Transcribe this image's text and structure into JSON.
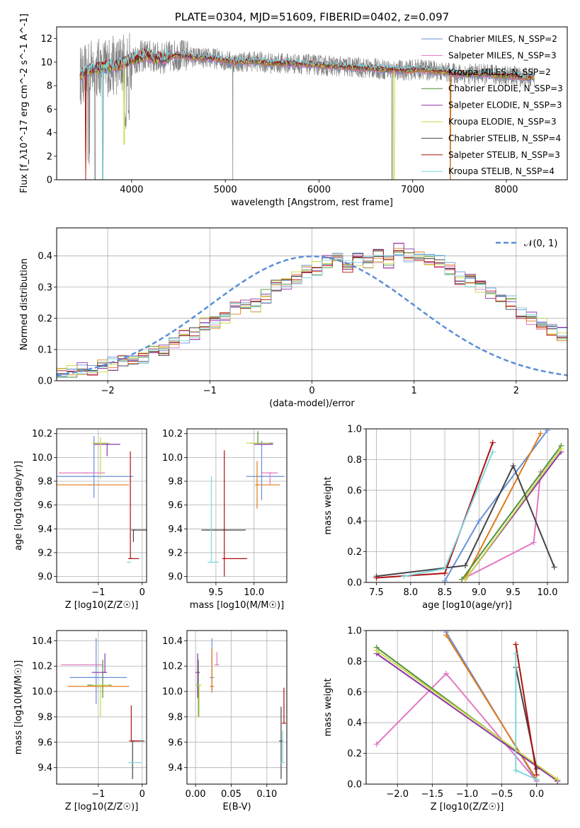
{
  "colors": {
    "c1": "#6a8fd8",
    "c2": "#e377c2",
    "c3": "#e07b1a",
    "c4": "#4f8f3a",
    "c5": "#8e35a8",
    "c6": "#c9d94a",
    "c7": "#444444",
    "c8": "#b01010",
    "c9": "#7fd6dd",
    "grey": "#808080",
    "normal": "#5b8fd6",
    "grid": "#b0b0b0"
  },
  "series_names": [
    "Chabrier MILES, N_SSP=2",
    "Salpeter MILES, N_SSP=3",
    "Kroupa MILES, N_SSP=2",
    "Chabrier ELODIE, N_SSP=3",
    "Salpeter ELODIE, N_SSP=3",
    "Kroupa ELODIE, N_SSP=3",
    "Chabrier STELIB, N_SSP=4",
    "Salpeter STELIB, N_SSP=3",
    "Kroupa STELIB, N_SSP=4"
  ],
  "chart_data": [
    {
      "id": "spectrum",
      "type": "line",
      "title": "PLATE=0304, MJD=51609, FIBERID=0402, z=0.097",
      "xlabel": "wavelength [Angstrom, rest frame]",
      "ylabel": "Flux [f_λ10^-17 erg cm^-2 s^-1 A^-1]",
      "xlim": [
        3200,
        8650
      ],
      "ylim": [
        0,
        13
      ],
      "xticks": [
        4000,
        5000,
        6000,
        7000,
        8000
      ],
      "yticks": [
        0,
        2,
        4,
        6,
        8,
        10,
        12
      ],
      "grid": false,
      "legend": "top-right",
      "legend_entries": [
        "Chabrier MILES, N_SSP=2",
        "Salpeter MILES, N_SSP=3",
        "Kroupa MILES, N_SSP=2",
        "Chabrier ELODIE, N_SSP=3",
        "Salpeter ELODIE, N_SSP=3",
        "Kroupa ELODIE, N_SSP=3",
        "Chabrier STELIB, N_SSP=4",
        "Salpeter STELIB, N_SSP=3",
        "Kroupa STELIB, N_SSP=4"
      ],
      "model_continuum": {
        "x": [
          3450,
          3550,
          3700,
          3850,
          4000,
          4150,
          4300,
          4500,
          4700,
          4900,
          5100,
          5300,
          5500,
          5700,
          5900,
          6100,
          6300,
          6500,
          6700,
          6900,
          7100,
          7300,
          7500,
          7700,
          7900,
          8100,
          8250
        ],
        "y": [
          8.9,
          9.3,
          9.6,
          9.7,
          10.2,
          10.6,
          10.3,
          10.6,
          10.4,
          10.3,
          10.0,
          10.1,
          9.9,
          9.9,
          9.8,
          9.7,
          9.6,
          9.5,
          9.4,
          9.3,
          9.4,
          9.2,
          9.0,
          9.0,
          8.9,
          8.8,
          8.7
        ]
      }
    },
    {
      "id": "residuals",
      "type": "line",
      "xlabel": "(data-model)/error",
      "ylabel": "Normed distribution",
      "xlim": [
        -2.5,
        2.5
      ],
      "ylim": [
        0,
        0.49
      ],
      "xticks": [
        -2,
        -1,
        0,
        1,
        2
      ],
      "yticks": [
        0.0,
        0.1,
        0.2,
        0.3,
        0.4
      ],
      "grid": true,
      "legend": "top-right",
      "legend_entries": [
        "N(0,1)"
      ],
      "normal_label": "𝒩(0, 1)",
      "bin_edges_start": -2.5,
      "bin_width": 0.1,
      "base_hist": [
        0.025,
        0.03,
        0.04,
        0.04,
        0.05,
        0.055,
        0.06,
        0.065,
        0.075,
        0.09,
        0.1,
        0.12,
        0.14,
        0.15,
        0.18,
        0.19,
        0.2,
        0.23,
        0.25,
        0.24,
        0.27,
        0.3,
        0.31,
        0.33,
        0.35,
        0.36,
        0.38,
        0.39,
        0.37,
        0.39,
        0.38,
        0.4,
        0.38,
        0.42,
        0.4,
        0.4,
        0.39,
        0.38,
        0.36,
        0.33,
        0.32,
        0.3,
        0.28,
        0.26,
        0.25,
        0.22,
        0.2,
        0.18,
        0.16,
        0.15,
        0.13,
        0.12,
        0.1,
        0.09,
        0.08,
        0.07,
        0.06,
        0.055,
        0.05,
        0.045,
        0.04,
        0.04,
        0.035,
        0.03,
        0.03,
        0.025,
        0.025,
        0.02,
        0.02,
        0.02
      ],
      "normal_curve": {
        "x": [
          -2.5,
          -2.0,
          -1.5,
          -1.0,
          -0.5,
          0.0,
          0.5,
          1.0,
          1.5,
          2.0,
          2.5
        ],
        "y": [
          0.0175,
          0.054,
          0.1295,
          0.242,
          0.352,
          0.399,
          0.352,
          0.242,
          0.1295,
          0.054,
          0.0175
        ]
      }
    },
    {
      "id": "z-age",
      "type": "scatter",
      "xlabel": "Z [log10(Z/Z☉)]",
      "ylabel": "age  [log10(age/yr)]",
      "xlim": [
        -1.95,
        0.1
      ],
      "ylim": [
        8.95,
        10.24
      ],
      "xticks": [
        -1,
        0
      ],
      "yticks": [
        9.0,
        9.2,
        9.4,
        9.6,
        9.8,
        10.0,
        10.2
      ],
      "grid": true,
      "points": [
        {
          "s": 1,
          "x": -1.1,
          "y": 9.84,
          "xerr": [
            0.9,
            0.9
          ],
          "yerr": [
            0.18,
            0.34
          ]
        },
        {
          "s": 2,
          "x": -1.3,
          "y": 9.87,
          "xerr": [
            0.6,
            0.45
          ],
          "yerr": [
            0.0,
            0.0
          ]
        },
        {
          "s": 3,
          "x": -1.2,
          "y": 9.77,
          "xerr": [
            0.8,
            0.9
          ],
          "yerr": [
            0.0,
            0.0
          ]
        },
        {
          "s": 4,
          "x": -0.9,
          "y": 10.12,
          "xerr": [
            0.2,
            0.15
          ],
          "yerr": [
            0.0,
            0.0
          ]
        },
        {
          "s": 5,
          "x": -0.8,
          "y": 10.11,
          "xerr": [
            0.3,
            0.3
          ],
          "yerr": [
            0.1,
            0.0
          ]
        },
        {
          "s": 6,
          "x": -0.95,
          "y": 10.12,
          "xerr": [
            0.2,
            0.2
          ],
          "yerr": [
            0.3,
            0.05
          ]
        },
        {
          "s": 7,
          "x": -0.2,
          "y": 9.39,
          "xerr": [
            0.0,
            0.3
          ],
          "yerr": [
            0.1,
            0.0
          ]
        },
        {
          "s": 8,
          "x": -0.27,
          "y": 9.15,
          "xerr": [
            0.0,
            0.2
          ],
          "yerr": [
            0.0,
            0.9
          ]
        },
        {
          "s": 9,
          "x": -0.3,
          "y": 9.12,
          "xerr": [
            0.0,
            0.0
          ],
          "yerr": [
            0.0,
            0.0
          ]
        }
      ]
    },
    {
      "id": "mass-age",
      "type": "scatter",
      "xlabel": "mass [log10(M/M☉)]",
      "ylabel": "",
      "xlim": [
        9.12,
        10.43
      ],
      "ylim": [
        8.95,
        10.24
      ],
      "xticks": [
        9.5,
        10.0
      ],
      "yticks": [
        9.0,
        9.2,
        9.4,
        9.6,
        9.8,
        10.0,
        10.2
      ],
      "grid": true,
      "points": [
        {
          "s": 1,
          "x": 10.1,
          "y": 9.84,
          "xerr": [
            0.2,
            0.3
          ],
          "yerr": [
            0.2,
            0.3
          ]
        },
        {
          "s": 2,
          "x": 10.21,
          "y": 9.87,
          "xerr": [
            0.12,
            0.1
          ],
          "yerr": [
            0.1,
            0.0
          ]
        },
        {
          "s": 3,
          "x": 10.04,
          "y": 9.77,
          "xerr": [
            0.0,
            0.3
          ],
          "yerr": [
            0.2,
            0.2
          ]
        },
        {
          "s": 4,
          "x": 10.05,
          "y": 10.12,
          "xerr": [
            0.1,
            0.2
          ],
          "yerr": [
            0.0,
            0.1
          ]
        },
        {
          "s": 5,
          "x": 10.15,
          "y": 10.11,
          "xerr": [
            0.15,
            0.1
          ],
          "yerr": [
            0.0,
            0.0
          ]
        },
        {
          "s": 6,
          "x": 10.0,
          "y": 10.12,
          "xerr": [
            0.1,
            0.2
          ],
          "yerr": [
            0.0,
            0.0
          ]
        },
        {
          "s": 7,
          "x": 9.61,
          "y": 9.39,
          "xerr": [
            0.3,
            0.28
          ],
          "yerr": [
            0.0,
            0.0
          ]
        },
        {
          "s": 8,
          "x": 9.61,
          "y": 9.15,
          "xerr": [
            0.0,
            0.3
          ],
          "yerr": [
            0.15,
            0.91
          ]
        },
        {
          "s": 9,
          "x": 9.44,
          "y": 9.12,
          "xerr": [
            0.05,
            0.1
          ],
          "yerr": [
            0.0,
            0.72
          ]
        }
      ]
    },
    {
      "id": "age-weight",
      "type": "line",
      "xlabel": "age  [log10(age/yr)]",
      "ylabel": "mass weight",
      "xlim": [
        7.35,
        10.3
      ],
      "ylim": [
        0,
        1
      ],
      "xticks": [
        7.5,
        8.0,
        8.5,
        9.0,
        9.5,
        10.0
      ],
      "yticks": [
        0.0,
        0.2,
        0.4,
        0.6,
        0.8,
        1.0
      ],
      "grid": true,
      "series": [
        {
          "s": 1,
          "x": [
            8.5,
            9.0,
            10.0
          ],
          "y": [
            0.01,
            0.4,
            0.99
          ]
        },
        {
          "s": 2,
          "x": [
            8.75,
            9.8,
            9.9
          ],
          "y": [
            0.02,
            0.26,
            0.72
          ]
        },
        {
          "s": 3,
          "x": [
            8.8,
            9.9
          ],
          "y": [
            0.03,
            0.97
          ]
        },
        {
          "s": 4,
          "x": [
            8.75,
            10.2
          ],
          "y": [
            0.02,
            0.89
          ]
        },
        {
          "s": 5,
          "x": [
            8.8,
            10.2
          ],
          "y": [
            0.02,
            0.85
          ]
        },
        {
          "s": 6,
          "x": [
            8.8,
            10.2
          ],
          "y": [
            0.02,
            0.87
          ]
        },
        {
          "s": 7,
          "x": [
            7.5,
            8.8,
            9.5,
            10.1
          ],
          "y": [
            0.04,
            0.11,
            0.76,
            0.1
          ]
        },
        {
          "s": 8,
          "x": [
            7.5,
            8.5,
            9.2
          ],
          "y": [
            0.03,
            0.06,
            0.91
          ]
        },
        {
          "s": 9,
          "x": [
            7.9,
            8.5,
            9.2
          ],
          "y": [
            0.04,
            0.09,
            0.85
          ]
        }
      ]
    },
    {
      "id": "z-mass",
      "type": "scatter",
      "xlabel": "Z [log10(Z/Z☉)]",
      "ylabel": "mass [log10(M/M☉)]",
      "xlim": [
        -1.95,
        0.1
      ],
      "ylim": [
        9.27,
        10.48
      ],
      "xticks": [
        -1,
        0
      ],
      "yticks": [
        9.4,
        9.6,
        9.8,
        10.0,
        10.2,
        10.4
      ],
      "grid": true,
      "points": [
        {
          "s": 1,
          "x": -1.05,
          "y": 10.11,
          "xerr": [
            0.6,
            0.7
          ],
          "yerr": [
            0.21,
            0.31
          ]
        },
        {
          "s": 2,
          "x": -1.3,
          "y": 10.21,
          "xerr": [
            0.55,
            0.4
          ],
          "yerr": [
            0.0,
            0.0
          ]
        },
        {
          "s": 3,
          "x": -1.1,
          "y": 10.04,
          "xerr": [
            0.6,
            0.8
          ],
          "yerr": [
            0.0,
            0.0
          ]
        },
        {
          "s": 4,
          "x": -0.9,
          "y": 10.05,
          "xerr": [
            0.35,
            0.2
          ],
          "yerr": [
            0.1,
            0.2
          ]
        },
        {
          "s": 5,
          "x": -0.85,
          "y": 10.15,
          "xerr": [
            0.3,
            0.0
          ],
          "yerr": [
            0.0,
            0.15
          ]
        },
        {
          "s": 6,
          "x": -0.95,
          "y": 10.05,
          "xerr": [
            0.2,
            0.2
          ],
          "yerr": [
            0.25,
            0.0
          ]
        },
        {
          "s": 7,
          "x": -0.22,
          "y": 9.61,
          "xerr": [
            0.0,
            0.27
          ],
          "yerr": [
            0.3,
            0.0
          ]
        },
        {
          "s": 8,
          "x": -0.25,
          "y": 9.61,
          "xerr": [
            0.0,
            0.2
          ],
          "yerr": [
            0.0,
            0.28
          ]
        },
        {
          "s": 9,
          "x": -0.27,
          "y": 9.44,
          "xerr": [
            0.0,
            0.25
          ],
          "yerr": [
            0.0,
            0.0
          ]
        }
      ]
    },
    {
      "id": "ebv-mass",
      "type": "scatter",
      "xlabel": "E(B-V)",
      "ylabel": "",
      "xlim": [
        -0.012,
        0.128
      ],
      "ylim": [
        9.27,
        10.48
      ],
      "xticks": [
        0.0,
        0.05,
        0.1
      ],
      "xticklabels": [
        "0.00",
        "0.05",
        "0.10"
      ],
      "yticks": [
        9.4,
        9.6,
        9.8,
        10.0,
        10.2,
        10.4
      ],
      "grid": true,
      "points": [
        {
          "s": 1,
          "x": 0.023,
          "y": 10.11,
          "yerr": [
            0.1,
            0.31
          ]
        },
        {
          "s": 2,
          "x": 0.03,
          "y": 10.21,
          "yerr": [
            0.0,
            0.1
          ]
        },
        {
          "s": 3,
          "x": 0.023,
          "y": 10.04,
          "yerr": [
            0.05,
            0.3
          ]
        },
        {
          "s": 4,
          "x": 0.004,
          "y": 10.05,
          "yerr": [
            0.25,
            0.2
          ]
        },
        {
          "s": 5,
          "x": 0.003,
          "y": 10.15,
          "yerr": [
            0.2,
            0.15
          ]
        },
        {
          "s": 6,
          "x": 0.005,
          "y": 10.05,
          "yerr": [
            0.25,
            0.0
          ]
        },
        {
          "s": 7,
          "x": 0.12,
          "y": 9.61,
          "yerr": [
            0.3,
            0.27
          ]
        },
        {
          "s": 8,
          "x": 0.124,
          "y": 9.75,
          "yerr": [
            0.0,
            0.28
          ]
        },
        {
          "s": 9,
          "x": 0.122,
          "y": 9.44,
          "yerr": [
            0.0,
            0.25
          ]
        }
      ]
    },
    {
      "id": "z-weight",
      "type": "line",
      "xlabel": "Z [log10(Z/Z☉)]",
      "ylabel": "mass weight",
      "xlim": [
        -2.45,
        0.45
      ],
      "ylim": [
        0,
        1
      ],
      "xticks": [
        -2.0,
        -1.5,
        -1.0,
        -0.5,
        0.0
      ],
      "yticks": [
        0.0,
        0.2,
        0.4,
        0.6,
        0.8,
        1.0
      ],
      "grid": true,
      "series": [
        {
          "s": 1,
          "x": [
            -1.3,
            0.0
          ],
          "y": [
            0.99,
            0.02
          ]
        },
        {
          "s": 2,
          "x": [
            -2.3,
            -1.3,
            0.0
          ],
          "y": [
            0.26,
            0.72,
            0.02
          ]
        },
        {
          "s": 3,
          "x": [
            -1.3,
            0.0
          ],
          "y": [
            0.97,
            0.03
          ]
        },
        {
          "s": 4,
          "x": [
            -2.3,
            0.3
          ],
          "y": [
            0.89,
            0.02
          ]
        },
        {
          "s": 5,
          "x": [
            -2.3,
            0.3
          ],
          "y": [
            0.85,
            0.02
          ]
        },
        {
          "s": 6,
          "x": [
            -2.3,
            0.3
          ],
          "y": [
            0.87,
            0.03
          ]
        },
        {
          "s": 7,
          "x": [
            -0.3,
            0.0
          ],
          "y": [
            0.76,
            0.1
          ]
        },
        {
          "s": 8,
          "x": [
            -0.3,
            0.0
          ],
          "y": [
            0.91,
            0.06
          ]
        },
        {
          "s": 9,
          "x": [
            -0.3,
            -0.3,
            0.0
          ],
          "y": [
            0.85,
            0.09,
            0.03
          ]
        }
      ]
    }
  ]
}
